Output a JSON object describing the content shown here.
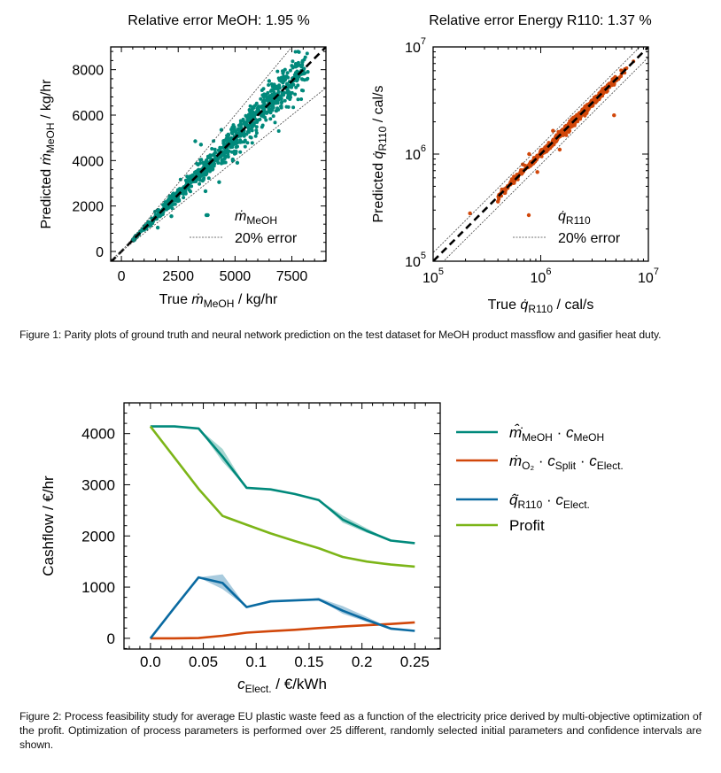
{
  "figure1": {
    "caption": "Figure 1: Parity plots of ground truth and neural network prediction on the test dataset for MeOH product massflow and gasifier heat duty."
  },
  "figure2": {
    "caption": "Figure 2: Process feasibility study for average EU plastic waste feed as a function of the electricity price derived by multi-objective optimization of the profit. Optimization of process parameters is performed over 25 different, randomly selected initial parameters and confidence intervals are shown."
  },
  "colors": {
    "teal": "#00897B",
    "orange": "#D1470A",
    "blue": "#0A6AA1",
    "green": "#7CB518",
    "black": "#000000"
  },
  "chart_data": [
    {
      "type": "scatter",
      "title": "Relative error MeOH: 1.95 %",
      "xlabel": "True ṁ_MeOH / kg/hr",
      "xlabel_parts": {
        "pre": "True ",
        "sym": "ṁ",
        "sub": "MeOH",
        "post": " / kg/hr"
      },
      "ylabel": "Predicted ṁ_MeOH / kg/hr",
      "ylabel_parts": {
        "pre": "Predicted ",
        "sym": "ṁ",
        "sub": "MeOH",
        "post": " / kg/hr"
      },
      "xscale": "linear",
      "yscale": "linear",
      "xlim": [
        -470,
        9000
      ],
      "ylim": [
        -430,
        9000
      ],
      "xticks": [
        0,
        2500,
        5000,
        7500
      ],
      "xtick_labels": [
        "0",
        "2500",
        "5000",
        "7500"
      ],
      "yticks": [
        0,
        2000,
        4000,
        6000,
        8000
      ],
      "ytick_labels": [
        "0",
        "2000",
        "4000",
        "6000",
        "8000"
      ],
      "legend": {
        "position": "lower-right",
        "entries": [
          {
            "label_sym": "ṁ",
            "label_sub": "MeOH",
            "marker": "dot"
          },
          {
            "label": "20% error",
            "marker": "dotted-line"
          }
        ]
      },
      "reference_lines": [
        {
          "name": "parity",
          "slope": 1.0,
          "style": "dashed"
        },
        {
          "name": "+20% error",
          "slope": 1.2,
          "style": "dotted"
        },
        {
          "name": "-20% error",
          "slope": 0.8,
          "style": "dotted"
        }
      ],
      "series": [
        {
          "name": "ṁ_MeOH",
          "color": "#00897B",
          "n_points_approx": 900,
          "x_range": [
            500,
            8200
          ],
          "relative_spread": 0.0195,
          "outliers": [
            {
              "x": 3250,
              "y": 4850
            },
            {
              "x": 3800,
              "y": 1600
            },
            {
              "x": 3500,
              "y": 4700
            },
            {
              "x": 4400,
              "y": 5350
            },
            {
              "x": 2200,
              "y": 1550
            },
            {
              "x": 6500,
              "y": 7500
            },
            {
              "x": 8200,
              "y": 7900
            },
            {
              "x": 5100,
              "y": 3900
            },
            {
              "x": 4300,
              "y": 3050
            },
            {
              "x": 3700,
              "y": 2650
            },
            {
              "x": 1600,
              "y": 1050
            },
            {
              "x": 4900,
              "y": 4050
            }
          ]
        }
      ]
    },
    {
      "type": "scatter",
      "title": "Relative error Energy R110: 1.37 %",
      "xlabel": "True q̇_R110 / cal/s",
      "xlabel_parts": {
        "pre": "True ",
        "sym": "q̇",
        "sub": "R110",
        "post": " / cal/s"
      },
      "ylabel": "Predicted q̇_R110 / cal/s",
      "ylabel_parts": {
        "pre": "Predicted ",
        "sym": "q̇",
        "sub": "R110",
        "post": " / cal/s"
      },
      "xscale": "log",
      "yscale": "log",
      "xlim": [
        100000,
        10000000
      ],
      "ylim": [
        100000,
        10000000
      ],
      "xticks": [
        100000,
        1000000,
        10000000
      ],
      "xtick_labels": [
        {
          "base": "10",
          "exp": "5"
        },
        {
          "base": "10",
          "exp": "6"
        },
        {
          "base": "10",
          "exp": "7"
        }
      ],
      "yticks": [
        100000,
        1000000,
        10000000
      ],
      "ytick_labels": [
        {
          "base": "10",
          "exp": "5"
        },
        {
          "base": "10",
          "exp": "6"
        },
        {
          "base": "10",
          "exp": "7"
        }
      ],
      "legend": {
        "position": "lower-right",
        "entries": [
          {
            "label_sym": "q̇",
            "label_sub": "R110",
            "marker": "dot"
          },
          {
            "label": "20% error",
            "marker": "dotted-line"
          }
        ]
      },
      "reference_lines": [
        {
          "name": "parity",
          "slope": 1.0,
          "style": "dashed"
        },
        {
          "name": "+20% error",
          "slope": 1.2,
          "style": "dotted"
        },
        {
          "name": "-20% error",
          "slope": 0.8,
          "style": "dotted"
        }
      ],
      "series": [
        {
          "name": "q̇_R110",
          "color": "#D1470A",
          "n_points_approx": 700,
          "x_range": [
            220000,
            8000000
          ],
          "relative_spread": 0.0137,
          "outliers": [
            {
              "x": 220000,
              "y": 280000
            },
            {
              "x": 4800000,
              "y": 2300000
            },
            {
              "x": 1300000,
              "y": 1650000
            },
            {
              "x": 930000,
              "y": 680000
            },
            {
              "x": 780000,
              "y": 1000000
            },
            {
              "x": 1500000,
              "y": 1100000
            },
            {
              "x": 400000,
              "y": 360000
            },
            {
              "x": 680000,
              "y": 800000
            }
          ]
        }
      ]
    },
    {
      "type": "line",
      "title": "",
      "xlabel": "c_Elect. / €/kWh",
      "xlabel_parts": {
        "sym": "c",
        "sub": "Elect.",
        "post": " / €/kWh"
      },
      "ylabel": "Cashflow / €/hr",
      "xlim": [
        -0.025,
        0.274
      ],
      "ylim": [
        -210,
        4600
      ],
      "xticks": [
        0.0,
        0.05,
        0.1,
        0.15,
        0.2,
        0.25
      ],
      "xtick_labels": [
        "0.0",
        "0.05",
        "0.1",
        "0.15",
        "0.2",
        "0.25"
      ],
      "yticks": [
        0,
        1000,
        2000,
        3000,
        4000
      ],
      "ytick_labels": [
        "0",
        "1000",
        "2000",
        "3000",
        "4000"
      ],
      "legend": {
        "position": "outside-right"
      },
      "x": [
        0.0,
        0.0227,
        0.0455,
        0.0682,
        0.0909,
        0.1136,
        0.1364,
        0.1591,
        0.1818,
        0.2045,
        0.2273,
        0.25
      ],
      "series": [
        {
          "name": "m̂̇_MeOH · c_MeOH",
          "legend": {
            "sym": "m̂̇",
            "sub": "MeOH",
            "parts": [
              {
                "t": " · "
              },
              {
                "t": "c",
                "i": true
              },
              {
                "t": "MeOH",
                "sub": true
              }
            ]
          },
          "color": "#00897B",
          "values": [
            4140,
            4140,
            4100,
            3550,
            2940,
            2910,
            2820,
            2700,
            2320,
            2100,
            1910,
            1860
          ],
          "ci_lower": [
            4140,
            4140,
            4100,
            3450,
            2940,
            2910,
            2820,
            2700,
            2260,
            2060,
            1910,
            1860
          ],
          "ci_upper": [
            4140,
            4140,
            4100,
            3700,
            2940,
            2910,
            2820,
            2700,
            2400,
            2150,
            1910,
            1860
          ]
        },
        {
          "name": "ṁ_O2 · c_Split · c_Elect.",
          "legend": {
            "sym": "ṁ",
            "sub": "O₂",
            "parts": [
              {
                "t": " · "
              },
              {
                "t": "c",
                "i": true
              },
              {
                "t": "Split",
                "sub": true
              },
              {
                "t": " · "
              },
              {
                "t": "c",
                "i": true
              },
              {
                "t": "Elect.",
                "sub": true
              }
            ]
          },
          "color": "#D1470A",
          "values": [
            0,
            0,
            5,
            50,
            110,
            140,
            165,
            200,
            230,
            255,
            280,
            310
          ],
          "ci_lower": [
            0,
            0,
            5,
            50,
            110,
            140,
            165,
            200,
            230,
            255,
            280,
            310
          ],
          "ci_upper": [
            0,
            0,
            5,
            50,
            110,
            140,
            165,
            200,
            230,
            255,
            280,
            310
          ]
        },
        {
          "name": "q̂̇_R110 · c_Elect.",
          "legend": {
            "sym": "q̂̇",
            "sub": "R110",
            "parts": [
              {
                "t": " · "
              },
              {
                "t": "c",
                "i": true
              },
              {
                "t": "Elect.",
                "sub": true
              }
            ]
          },
          "color": "#0A6AA1",
          "values": [
            0,
            600,
            1190,
            1080,
            610,
            720,
            740,
            760,
            540,
            360,
            190,
            145
          ],
          "ci_lower": [
            0,
            600,
            1190,
            960,
            610,
            720,
            740,
            760,
            480,
            320,
            190,
            145
          ],
          "ci_upper": [
            0,
            600,
            1190,
            1250,
            610,
            720,
            740,
            790,
            630,
            420,
            190,
            145
          ]
        },
        {
          "name": "Profit",
          "legend": {
            "text": "Profit"
          },
          "color": "#7CB518",
          "values": [
            4140,
            3530,
            2920,
            2390,
            2220,
            2050,
            1900,
            1760,
            1590,
            1500,
            1440,
            1400
          ],
          "ci_lower": [
            4140,
            3530,
            2920,
            2390,
            2220,
            2050,
            1900,
            1760,
            1590,
            1500,
            1440,
            1400
          ],
          "ci_upper": [
            4140,
            3530,
            2920,
            2390,
            2220,
            2050,
            1900,
            1760,
            1590,
            1500,
            1440,
            1400
          ]
        }
      ]
    }
  ]
}
